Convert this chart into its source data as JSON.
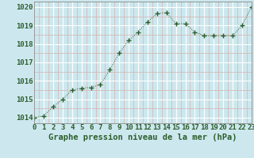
{
  "x": [
    0,
    1,
    2,
    3,
    4,
    5,
    6,
    7,
    8,
    9,
    10,
    11,
    12,
    13,
    14,
    15,
    16,
    17,
    18,
    19,
    20,
    21,
    22,
    23
  ],
  "y": [
    1014.0,
    1014.1,
    1014.6,
    1015.0,
    1015.5,
    1015.6,
    1015.65,
    1015.8,
    1016.6,
    1017.5,
    1018.2,
    1018.65,
    1019.2,
    1019.65,
    1019.7,
    1019.1,
    1019.1,
    1018.65,
    1018.45,
    1018.45,
    1018.45,
    1018.45,
    1019.0,
    1020.0
  ],
  "line_color": "#2d5e2d",
  "marker": "+",
  "marker_size": 4,
  "bg_color": "#cce8ee",
  "grid_color": "#ffffff",
  "grid_minor_color": "#d8b0b0",
  "ylabel_ticks": [
    1014,
    1015,
    1016,
    1017,
    1018,
    1019,
    1020
  ],
  "xlabel": "Graphe pression niveau de la mer (hPa)",
  "xlim": [
    0,
    23
  ],
  "ylim": [
    1013.7,
    1020.3
  ],
  "tick_fontsize": 6.5,
  "xlabel_fontsize": 7.5
}
